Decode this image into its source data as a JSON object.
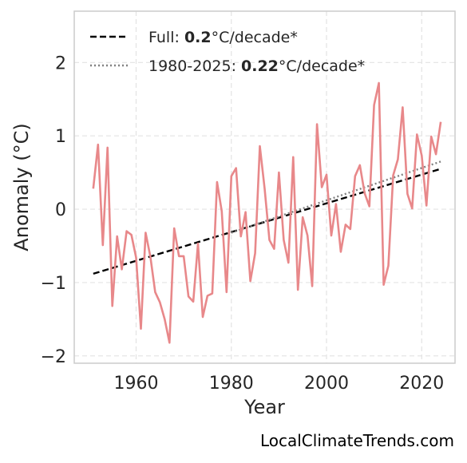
{
  "chart_data": {
    "type": "line",
    "xlabel": "Year",
    "ylabel": "Anomaly (°C)",
    "xlim": [
      1947,
      2027
    ],
    "ylim": [
      -2.1,
      2.7
    ],
    "xticks": [
      1960,
      1980,
      2000,
      2020
    ],
    "yticks": [
      -2,
      -1,
      0,
      1,
      2
    ],
    "ytick_labels": [
      "−2",
      "−1",
      "0",
      "1",
      "2"
    ],
    "grid": true,
    "legend_position": "top-left",
    "series": [
      {
        "style": "line",
        "color": "#e8888a",
        "x": [
          1951,
          1952,
          1953,
          1954,
          1955,
          1956,
          1957,
          1958,
          1959,
          1960,
          1961,
          1962,
          1963,
          1964,
          1965,
          1966,
          1967,
          1968,
          1969,
          1970,
          1971,
          1972,
          1973,
          1974,
          1975,
          1976,
          1977,
          1978,
          1979,
          1980,
          1981,
          1982,
          1983,
          1984,
          1985,
          1986,
          1987,
          1988,
          1989,
          1990,
          1991,
          1992,
          1993,
          1994,
          1995,
          1996,
          1997,
          1998,
          1999,
          2000,
          2001,
          2002,
          2003,
          2004,
          2005,
          2006,
          2007,
          2008,
          2009,
          2010,
          2011,
          2012,
          2013,
          2014,
          2015,
          2016,
          2017,
          2018,
          2019,
          2020,
          2021,
          2022,
          2023,
          2024
        ],
        "y": [
          0.28,
          0.88,
          -0.49,
          0.84,
          -1.32,
          -0.37,
          -0.82,
          -0.3,
          -0.35,
          -0.66,
          -1.63,
          -0.32,
          -0.65,
          -1.13,
          -1.27,
          -1.5,
          -1.82,
          -0.26,
          -0.64,
          -0.64,
          -1.19,
          -1.26,
          -0.47,
          -1.47,
          -1.18,
          -1.15,
          0.37,
          -0.03,
          -1.13,
          0.45,
          0.56,
          -0.37,
          -0.04,
          -0.98,
          -0.6,
          0.86,
          0.28,
          -0.42,
          -0.54,
          0.5,
          -0.42,
          -0.73,
          0.71,
          -1.1,
          -0.11,
          -0.36,
          -1.05,
          1.16,
          0.3,
          0.47,
          -0.36,
          0.07,
          -0.58,
          -0.21,
          -0.27,
          0.45,
          0.6,
          0.22,
          0.04,
          1.42,
          1.72,
          -1.03,
          -0.77,
          0.46,
          0.68,
          1.39,
          0.21,
          0.01,
          1.02,
          0.73,
          0.05,
          0.99,
          0.75,
          1.19
        ]
      }
    ],
    "trends": [
      {
        "label_prefix": "Full: ",
        "label_value": "0.2",
        "label_suffix": "°C/decade*",
        "style": "dashed",
        "color": "#000000",
        "x": [
          1951,
          2024
        ],
        "y": [
          -0.88,
          0.55
        ]
      },
      {
        "label_prefix": "1980-2025: ",
        "label_value": "0.22",
        "label_suffix": "°C/decade*",
        "style": "dotted",
        "color": "#808080",
        "x": [
          1980,
          2024
        ],
        "y": [
          -0.32,
          0.65
        ]
      }
    ]
  },
  "credit": "LocalClimateTrends.com"
}
